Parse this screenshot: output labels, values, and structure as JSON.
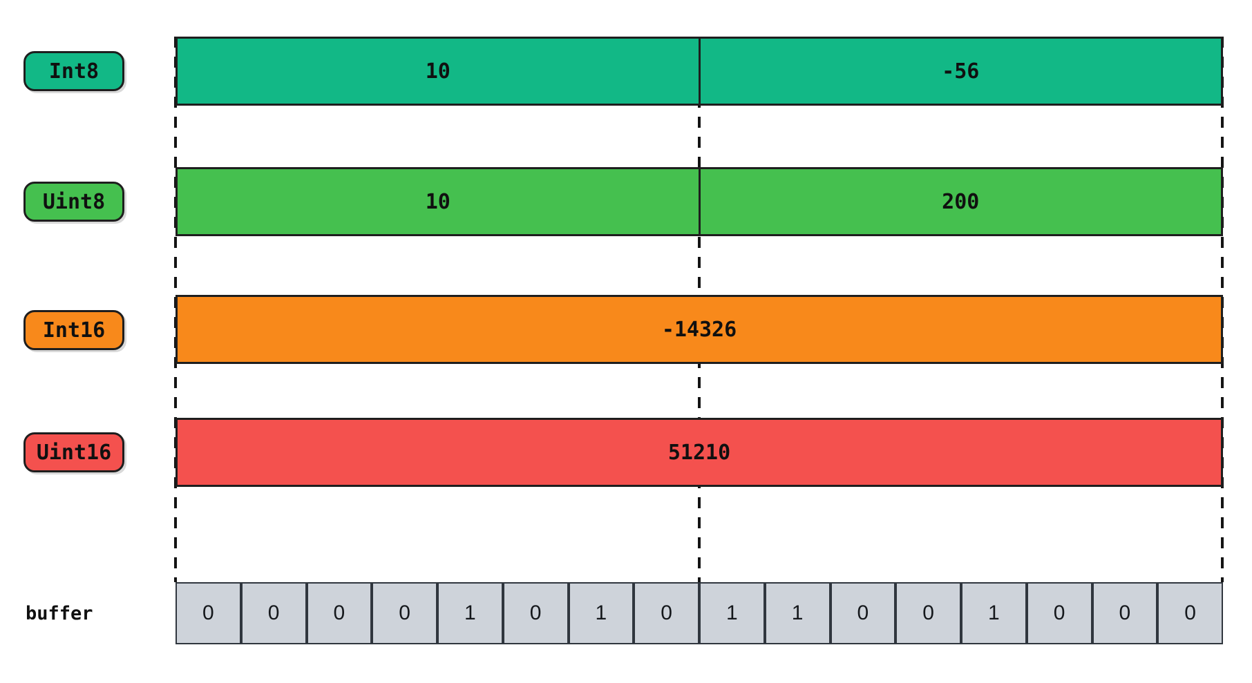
{
  "colors": {
    "int8": "#12b886",
    "uint8": "#45c04f",
    "int16": "#f8891b",
    "uint16": "#f4514e",
    "buffer_cell": "#ced3da"
  },
  "rows": [
    {
      "label": "Int8",
      "segments": [
        {
          "value": "10"
        },
        {
          "value": "-56"
        }
      ]
    },
    {
      "label": "Uint8",
      "segments": [
        {
          "value": "10"
        },
        {
          "value": "200"
        }
      ]
    },
    {
      "label": "Int16",
      "segments": [
        {
          "value": "-14326"
        }
      ]
    },
    {
      "label": "Uint16",
      "segments": [
        {
          "value": "51210"
        }
      ]
    }
  ],
  "buffer": {
    "label": "buffer",
    "bits": [
      "0",
      "0",
      "0",
      "0",
      "1",
      "0",
      "1",
      "0",
      "1",
      "1",
      "0",
      "0",
      "1",
      "0",
      "0",
      "0"
    ]
  }
}
